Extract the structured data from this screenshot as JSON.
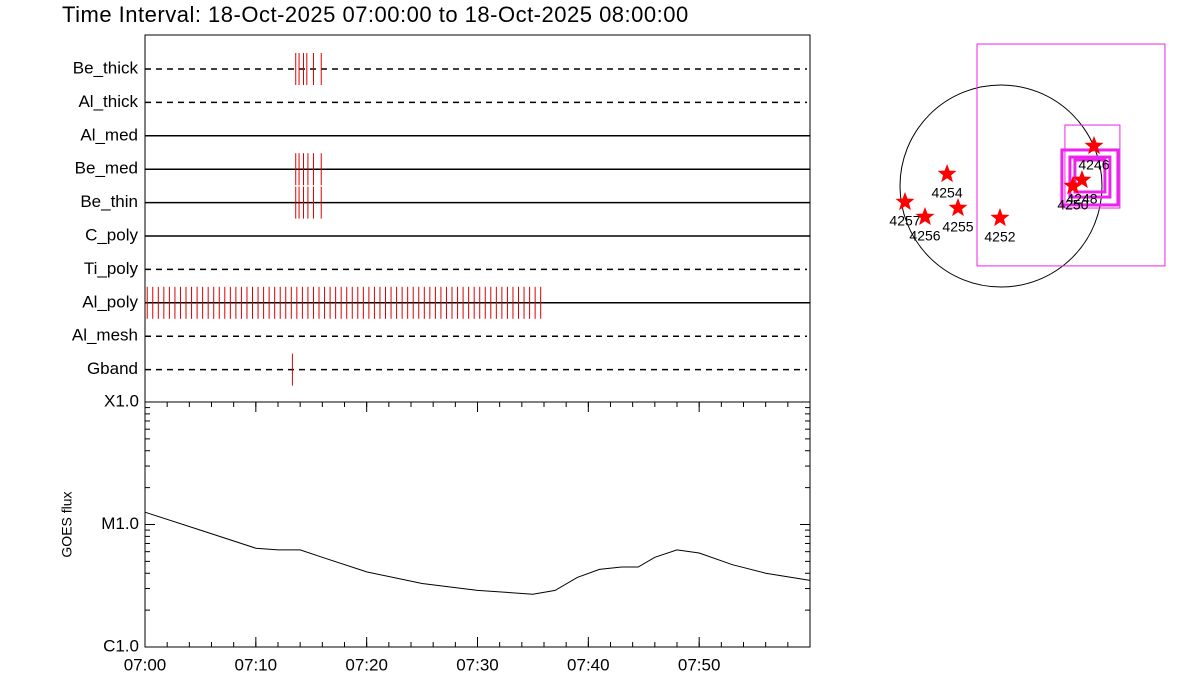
{
  "title": "Time Interval: 18-Oct-2025 07:00:00 to 18-Oct-2025 08:00:00",
  "chart_data": [
    {
      "type": "timeline",
      "xlim": [
        0,
        60
      ],
      "color": "#dd0000",
      "series": [
        {
          "name": "Be_thick",
          "style": "dashed",
          "x": [
            13.6,
            13.9,
            14.3,
            14.6,
            15.2,
            15.9
          ]
        },
        {
          "name": "Al_thick",
          "style": "dashed",
          "x": []
        },
        {
          "name": "Al_med",
          "style": "solid",
          "x": []
        },
        {
          "name": "Be_med",
          "style": "solid",
          "x": [
            13.6,
            13.9,
            14.3,
            14.7,
            15.2,
            15.9
          ]
        },
        {
          "name": "Be_thin",
          "style": "solid",
          "x": [
            13.6,
            13.9,
            14.3,
            14.7,
            15.2,
            15.9
          ]
        },
        {
          "name": "C_poly",
          "style": "solid",
          "x": []
        },
        {
          "name": "Ti_poly",
          "style": "dashed",
          "x": []
        },
        {
          "name": "Al_poly",
          "style": "solid",
          "x": [
            0.2,
            0.7,
            1.2,
            1.7,
            2.2,
            2.7,
            3.2,
            3.7,
            4.2,
            4.7,
            5.2,
            5.7,
            6.2,
            6.7,
            7.2,
            7.7,
            8.2,
            8.7,
            9.2,
            9.7,
            10.2,
            10.7,
            11.2,
            11.7,
            12.2,
            12.7,
            13.2,
            13.7,
            14.2,
            14.7,
            15.2,
            15.7,
            16.2,
            16.7,
            17.2,
            17.7,
            18.2,
            18.7,
            19.2,
            19.7,
            20.2,
            20.7,
            21.2,
            21.7,
            22.2,
            22.7,
            23.2,
            23.7,
            24.2,
            24.7,
            25.2,
            25.7,
            26.2,
            26.7,
            27.2,
            27.7,
            28.2,
            28.7,
            29.2,
            29.7,
            30.2,
            30.7,
            31.2,
            31.7,
            32.2,
            32.7,
            33.2,
            33.7,
            34.2,
            34.7,
            35.2,
            35.7
          ]
        },
        {
          "name": "Al_mesh",
          "style": "dashed",
          "x": []
        },
        {
          "name": "Gband",
          "style": "dashed",
          "x": [
            13.3
          ]
        }
      ]
    },
    {
      "type": "line",
      "ylabel": "GOES flux",
      "log": true,
      "color": "#000000",
      "xlim": [
        0,
        60
      ],
      "ylim": [
        1e-06,
        0.0001
      ],
      "xticks": [
        {
          "value": 0,
          "label": "07:00"
        },
        {
          "value": 10,
          "label": "07:10"
        },
        {
          "value": 20,
          "label": "07:20"
        },
        {
          "value": 30,
          "label": "07:30"
        },
        {
          "value": 40,
          "label": "07:40"
        },
        {
          "value": 50,
          "label": "07:50"
        }
      ],
      "yticks": [
        {
          "value": 1e-06,
          "label": "C1.0"
        },
        {
          "value": 1e-05,
          "label": "M1.0"
        },
        {
          "value": 0.0001,
          "label": "X1.0"
        }
      ],
      "x": [
        0,
        5,
        10,
        12,
        14,
        16,
        20,
        25,
        30,
        35,
        37,
        39,
        41,
        43,
        44.5,
        46,
        48,
        50,
        53,
        56,
        60
      ],
      "values": [
        1.26e-05,
        9e-06,
        6.4e-06,
        6.2e-06,
        6.2e-06,
        5.4e-06,
        4.1e-06,
        3.3e-06,
        2.9e-06,
        2.7e-06,
        2.9e-06,
        3.7e-06,
        4.3e-06,
        4.5e-06,
        4.5e-06,
        5.4e-06,
        6.2e-06,
        5.85e-06,
        4.7e-06,
        4e-06,
        3.5e-06
      ]
    }
  ],
  "map": {
    "regions": [
      {
        "label": "4246",
        "x": 893,
        "y": 384
      },
      {
        "label": "4254",
        "x": -518,
        "y": 115
      },
      {
        "label": "4257",
        "x": -922,
        "y": -154
      },
      {
        "label": "4256",
        "x": -730,
        "y": -298
      },
      {
        "label": "4255",
        "x": -413,
        "y": -211
      },
      {
        "label": "4252",
        "x": -10,
        "y": -307
      },
      {
        "label": "4248",
        "x": 778,
        "y": 58
      },
      {
        "label": "4250",
        "x": 691,
        "y": 0
      }
    ],
    "fov": [
      {
        "x": 672,
        "y": 298,
        "width": 1805,
        "height": 2131,
        "weight": "thin"
      },
      {
        "x": 878,
        "y": 187,
        "width": 528,
        "height": 797,
        "weight": "thin"
      },
      {
        "x": 854,
        "y": 82,
        "width": 538,
        "height": 528,
        "weight": "thick"
      },
      {
        "x": 854,
        "y": 86,
        "width": 384,
        "height": 384,
        "weight": "thick"
      },
      {
        "x": 854,
        "y": 96,
        "width": 288,
        "height": 307,
        "weight": "thick"
      }
    ]
  }
}
